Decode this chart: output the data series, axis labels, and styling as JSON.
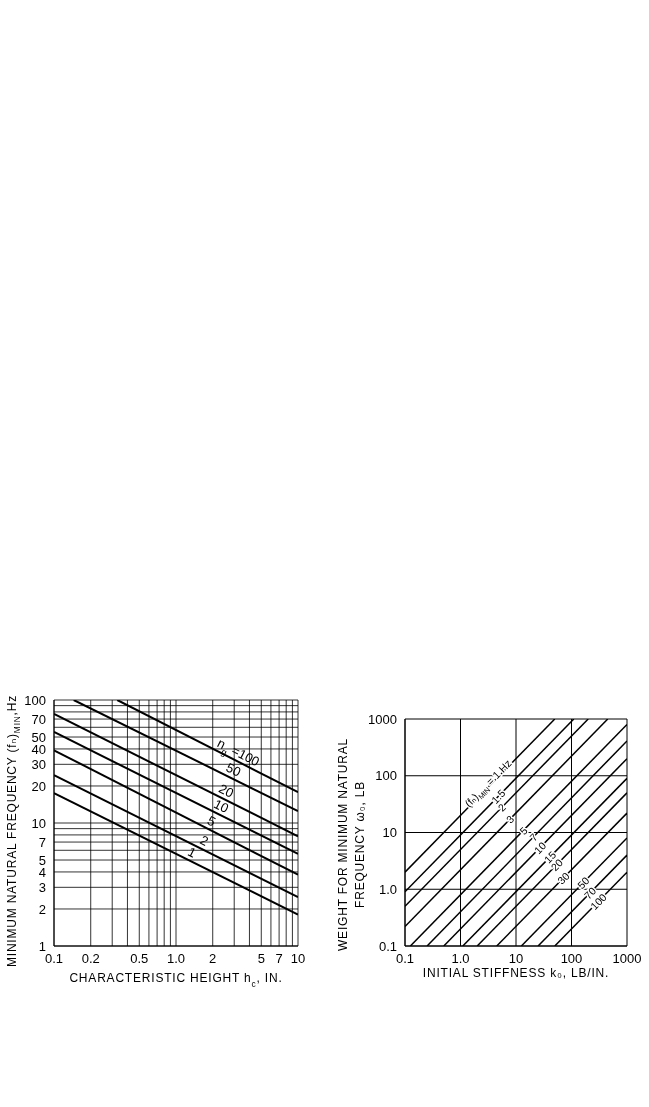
{
  "chart_data": [
    {
      "type": "line",
      "xlabel": "CHARACTERISTIC HEIGHT h$_{c}$, IN.",
      "ylabel": "MINIMUM NATURAL FREQUENCY (fₙ)$_{MIN}$,Hz",
      "log": "xy",
      "xlim": [
        0.1,
        10
      ],
      "ylim": [
        1,
        100
      ],
      "xticks": [
        0.1,
        0.2,
        {
          "value": 0.3,
          "label": null
        },
        {
          "value": 0.4,
          "label": null
        },
        0.5,
        {
          "value": 0.6,
          "label": null
        },
        {
          "value": 0.7,
          "label": null
        },
        {
          "value": 0.8,
          "label": null
        },
        {
          "value": 0.9,
          "label": null
        },
        {
          "value": 1,
          "label": "1.0"
        },
        2,
        {
          "value": 3,
          "label": null
        },
        {
          "value": 4,
          "label": null
        },
        5,
        {
          "value": 6,
          "label": null
        },
        7,
        {
          "value": 8,
          "label": null
        },
        {
          "value": 9,
          "label": null
        },
        10
      ],
      "yticks": [
        1,
        2,
        3,
        4,
        5,
        {
          "value": 6,
          "label": null
        },
        7,
        {
          "value": 8,
          "label": null
        },
        {
          "value": 9,
          "label": null
        },
        10,
        20,
        30,
        40,
        50,
        {
          "value": 60,
          "label": null
        },
        70,
        {
          "value": 80,
          "label": null
        },
        {
          "value": 90,
          "label": null
        },
        100
      ],
      "grid": true,
      "marker": "none",
      "line_style": "solid",
      "series": [
        {
          "name": "n$_{g}$ =100",
          "color": "#000000",
          "x": [
            0.33,
            10
          ],
          "values": [
            100,
            17.8
          ]
        },
        {
          "name": "50",
          "color": "#000000",
          "x": [
            0.145,
            10
          ],
          "values": [
            100,
            12.5
          ]
        },
        {
          "name": "20",
          "color": "#000000",
          "x": [
            0.1,
            10
          ],
          "values": [
            77,
            7.8
          ]
        },
        {
          "name": "10",
          "color": "#000000",
          "x": [
            0.1,
            10
          ],
          "values": [
            55,
            5.6
          ]
        },
        {
          "name": "5",
          "color": "#000000",
          "x": [
            0.1,
            10
          ],
          "values": [
            39,
            3.8
          ]
        },
        {
          "name": "2",
          "color": "#000000",
          "x": [
            0.1,
            10
          ],
          "values": [
            24.5,
            2.5
          ]
        },
        {
          "name": "1",
          "color": "#000000",
          "x": [
            0.1,
            10
          ],
          "values": [
            17.5,
            1.8
          ]
        }
      ]
    },
    {
      "type": "line",
      "xlabel": "INITIAL STIFFNESS k₀, LB/IN.",
      "ylabel": "WEIGHT FOR MINIMUM NATURAL FREQUENCY ω₀, LB",
      "log": "xy",
      "xlim": [
        0.1,
        1000
      ],
      "ylim": [
        0.1,
        1000
      ],
      "xticks": [
        0.1,
        {
          "value": 1,
          "label": "1.0"
        },
        10,
        100,
        1000
      ],
      "yticks": [
        0.1,
        {
          "value": 1,
          "label": "1.0"
        },
        10,
        100,
        1000
      ],
      "grid": true,
      "marker": "none",
      "line_style": "solid",
      "series": [
        {
          "name": "(fₙ)$_{MIN}$ = 1 Hz",
          "color": "#000000",
          "x": [
            0.1,
            50
          ],
          "values": [
            2,
            1000
          ]
        },
        {
          "name": "1.5",
          "color": "#000000",
          "x": [
            0.1,
            110
          ],
          "values": [
            0.9,
            1000
          ]
        },
        {
          "name": "2",
          "color": "#000000",
          "x": [
            0.1,
            200
          ],
          "values": [
            0.5,
            1000
          ]
        },
        {
          "name": "3",
          "color": "#000000",
          "x": [
            0.1,
            450
          ],
          "values": [
            0.22,
            1000
          ]
        },
        {
          "name": "5",
          "color": "#000000",
          "x": [
            0.125,
            1000
          ],
          "values": [
            0.1,
            800
          ]
        },
        {
          "name": "7",
          "color": "#000000",
          "x": [
            0.25,
            1000
          ],
          "values": [
            0.1,
            410
          ]
        },
        {
          "name": "10",
          "color": "#000000",
          "x": [
            0.5,
            1000
          ],
          "values": [
            0.1,
            200
          ]
        },
        {
          "name": "15",
          "color": "#000000",
          "x": [
            1.1,
            1000
          ],
          "values": [
            0.1,
            90
          ]
        },
        {
          "name": "20",
          "color": "#000000",
          "x": [
            2,
            1000
          ],
          "values": [
            0.1,
            50
          ]
        },
        {
          "name": "30",
          "color": "#000000",
          "x": [
            4.5,
            1000
          ],
          "values": [
            0.1,
            22
          ]
        },
        {
          "name": "50",
          "color": "#000000",
          "x": [
            12.5,
            1000
          ],
          "values": [
            0.1,
            8
          ]
        },
        {
          "name": "70",
          "color": "#000000",
          "x": [
            25,
            1000
          ],
          "values": [
            0.1,
            4
          ]
        },
        {
          "name": "100",
          "color": "#000000",
          "x": [
            50,
            1000
          ],
          "values": [
            0.1,
            2
          ]
        }
      ]
    }
  ]
}
